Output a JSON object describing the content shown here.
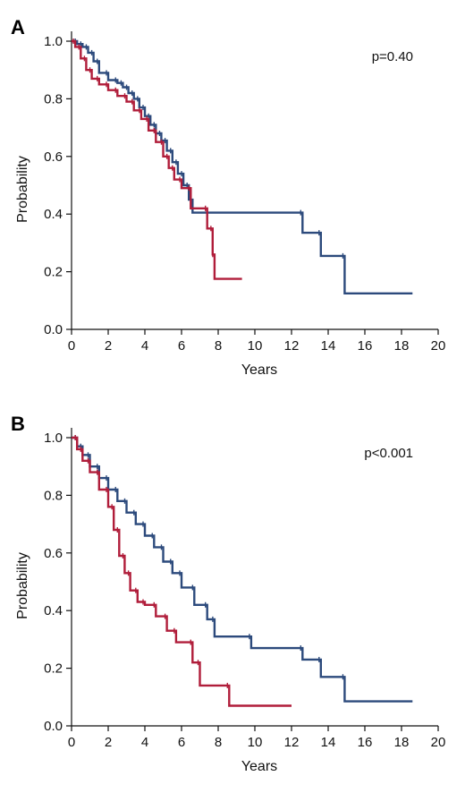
{
  "chart_data": [
    {
      "type": "line",
      "panel_label": "A",
      "annotation": "p=0.40",
      "xlabel": "Years",
      "ylabel": "Probability",
      "xlim": [
        0,
        20
      ],
      "ylim": [
        0,
        1.0
      ],
      "xticks": [
        "0",
        "2",
        "4",
        "6",
        "8",
        "10",
        "12",
        "14",
        "16",
        "18",
        "20"
      ],
      "yticks": [
        "0.0",
        "0.2",
        "0.4",
        "0.6",
        "0.8",
        "1.0"
      ],
      "grid": false,
      "series": [
        {
          "color": "#2c4a7c",
          "x": [
            0,
            0.3,
            0.6,
            0.9,
            1.2,
            1.5,
            2.0,
            2.5,
            2.8,
            3.1,
            3.4,
            3.7,
            4.0,
            4.3,
            4.6,
            4.9,
            5.2,
            5.5,
            5.8,
            6.1,
            6.4,
            6.6,
            12.6,
            13.6,
            14.9,
            18.6
          ],
          "y": [
            1.0,
            0.99,
            0.98,
            0.96,
            0.93,
            0.89,
            0.865,
            0.855,
            0.84,
            0.82,
            0.8,
            0.77,
            0.74,
            0.71,
            0.68,
            0.655,
            0.62,
            0.58,
            0.54,
            0.5,
            0.45,
            0.405,
            0.335,
            0.255,
            0.125,
            0.125
          ]
        },
        {
          "color": "#b01d3a",
          "x": [
            0,
            0.2,
            0.5,
            0.8,
            1.1,
            1.5,
            2.0,
            2.5,
            3.0,
            3.4,
            3.8,
            4.2,
            4.6,
            5.0,
            5.3,
            5.6,
            6.0,
            6.5,
            7.4,
            7.7,
            7.8,
            9.3
          ],
          "y": [
            1.0,
            0.98,
            0.94,
            0.9,
            0.87,
            0.85,
            0.83,
            0.81,
            0.79,
            0.76,
            0.73,
            0.69,
            0.65,
            0.6,
            0.56,
            0.52,
            0.49,
            0.42,
            0.35,
            0.26,
            0.175,
            0.175
          ]
        }
      ]
    },
    {
      "type": "line",
      "panel_label": "B",
      "annotation": "p<0.001",
      "xlabel": "Years",
      "ylabel": "Probability",
      "xlim": [
        0,
        20
      ],
      "ylim": [
        0,
        1.0
      ],
      "xticks": [
        "0",
        "2",
        "4",
        "6",
        "8",
        "10",
        "12",
        "14",
        "16",
        "18",
        "20"
      ],
      "yticks": [
        "0.0",
        "0.2",
        "0.4",
        "0.6",
        "0.8",
        "1.0"
      ],
      "grid": false,
      "series": [
        {
          "color": "#2c4a7c",
          "x": [
            0,
            0.3,
            0.6,
            1.0,
            1.5,
            2.0,
            2.5,
            3.0,
            3.5,
            4.0,
            4.5,
            5.0,
            5.5,
            6.0,
            6.7,
            7.4,
            7.8,
            9.8,
            12.6,
            13.6,
            14.9,
            18.6
          ],
          "y": [
            1.0,
            0.97,
            0.94,
            0.9,
            0.86,
            0.82,
            0.78,
            0.74,
            0.7,
            0.66,
            0.62,
            0.57,
            0.53,
            0.48,
            0.42,
            0.37,
            0.31,
            0.27,
            0.23,
            0.17,
            0.085,
            0.085
          ]
        },
        {
          "color": "#b01d3a",
          "x": [
            0,
            0.3,
            0.6,
            1.0,
            1.5,
            2.0,
            2.3,
            2.6,
            2.9,
            3.2,
            3.6,
            4.0,
            4.6,
            5.2,
            5.7,
            6.6,
            7.0,
            8.6,
            12.0
          ],
          "y": [
            1.0,
            0.96,
            0.92,
            0.88,
            0.82,
            0.76,
            0.68,
            0.59,
            0.53,
            0.47,
            0.43,
            0.42,
            0.38,
            0.33,
            0.29,
            0.22,
            0.14,
            0.07,
            0.07
          ]
        }
      ]
    }
  ]
}
